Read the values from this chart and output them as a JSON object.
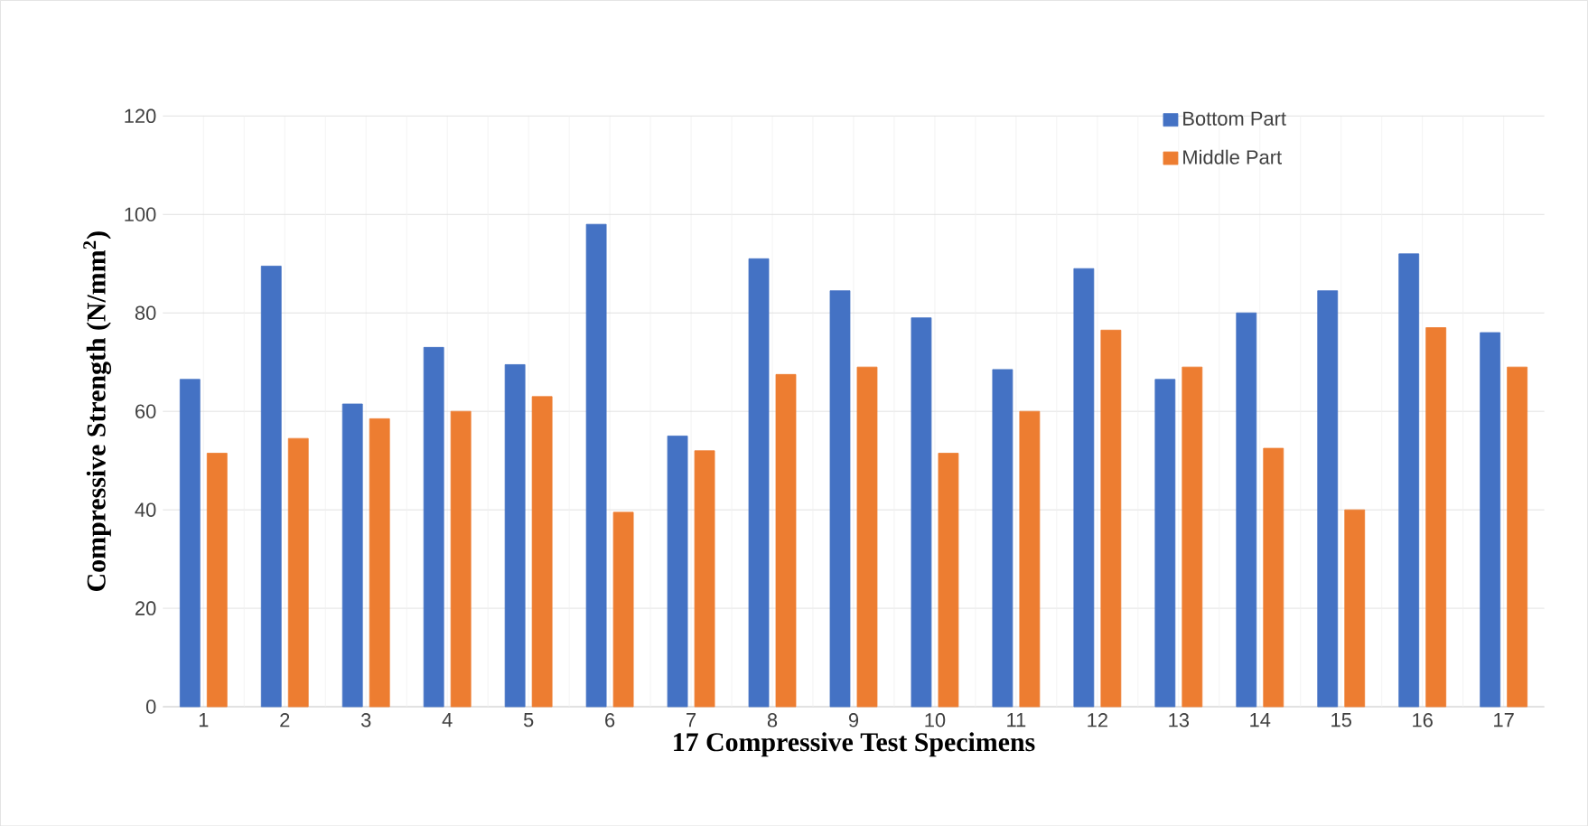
{
  "chart_data": {
    "type": "bar",
    "xlabel": "17 Compressive Test Specimens",
    "ylabel": "Compressive Strength (N/mm$^{2}$)",
    "categories": [
      "1",
      "2",
      "3",
      "4",
      "5",
      "6",
      "7",
      "8",
      "9",
      "10",
      "11",
      "12",
      "13",
      "14",
      "15",
      "16",
      "17"
    ],
    "series": [
      {
        "name": "Bottom Part",
        "color": "#4472c4",
        "values": [
          66.5,
          89.5,
          61.5,
          73,
          69.5,
          98,
          55,
          91,
          84.5,
          79,
          68.5,
          89,
          66.5,
          80,
          84.5,
          92,
          76
        ]
      },
      {
        "name": "Middle Part",
        "color": "#ed7d31",
        "values": [
          51.5,
          54.5,
          58.5,
          60,
          63,
          39.5,
          52,
          67.5,
          69,
          51.5,
          60,
          76.5,
          69,
          52.5,
          40,
          77,
          69
        ]
      }
    ],
    "ylim": [
      0,
      120
    ],
    "yticks": [
      0,
      20,
      40,
      60,
      80,
      100,
      120
    ],
    "grid": true,
    "legend": "top right"
  }
}
